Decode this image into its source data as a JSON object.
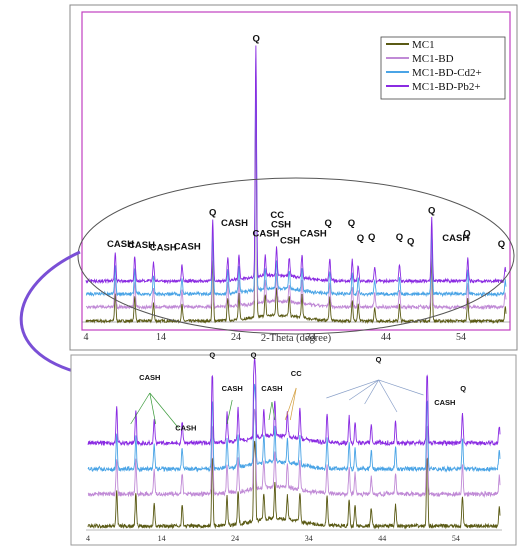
{
  "chart_data": [
    {
      "type": "line",
      "title": "",
      "xlabel": "2-Theta (degree)",
      "ylabel": "",
      "xlim": [
        4,
        60
      ],
      "x_ticks": [
        4,
        14,
        24,
        34,
        44,
        54
      ],
      "legend_position": "top-right",
      "series": [
        {
          "name": "MC1",
          "color": "#5a5a14"
        },
        {
          "name": "MC1-BD",
          "color": "#c08ad6"
        },
        {
          "name": "MC1-BD-Cd2+",
          "color": "#4aa4e6"
        },
        {
          "name": "MC1-BD-Pb2+",
          "color": "#8a2be2"
        }
      ],
      "peaks": [
        {
          "x": 7.9,
          "h": 0.12
        },
        {
          "x": 10.5,
          "h": 0.11
        },
        {
          "x": 13.0,
          "h": 0.08
        },
        {
          "x": 16.8,
          "h": 0.07
        },
        {
          "x": 20.9,
          "h": 0.26
        },
        {
          "x": 22.9,
          "h": 0.1
        },
        {
          "x": 24.4,
          "h": 0.11
        },
        {
          "x": 26.65,
          "h": 1.0
        },
        {
          "x": 27.9,
          "h": 0.09
        },
        {
          "x": 29.4,
          "h": 0.12
        },
        {
          "x": 31.1,
          "h": 0.08
        },
        {
          "x": 32.8,
          "h": 0.1
        },
        {
          "x": 36.5,
          "h": 0.1
        },
        {
          "x": 39.5,
          "h": 0.09
        },
        {
          "x": 40.3,
          "h": 0.07
        },
        {
          "x": 42.5,
          "h": 0.06
        },
        {
          "x": 45.8,
          "h": 0.07
        },
        {
          "x": 50.1,
          "h": 0.27
        },
        {
          "x": 54.9,
          "h": 0.1
        },
        {
          "x": 59.9,
          "h": 0.06
        }
      ],
      "annotations": [
        {
          "text": "Q",
          "x": 26.7,
          "y": 1.04
        },
        {
          "text": "CASH",
          "x": 8.6,
          "y": 0.155
        },
        {
          "text": "CASH",
          "x": 11.4,
          "y": 0.15
        },
        {
          "text": "CASH",
          "x": 14.3,
          "y": 0.14
        },
        {
          "text": "CASH",
          "x": 17.5,
          "y": 0.145
        },
        {
          "text": "Q",
          "x": 20.9,
          "y": 0.29
        },
        {
          "text": "CASH",
          "x": 23.8,
          "y": 0.245
        },
        {
          "text": "CASH",
          "x": 28.0,
          "y": 0.2
        },
        {
          "text": "CC",
          "x": 29.5,
          "y": 0.28
        },
        {
          "text": "CSH",
          "x": 30.0,
          "y": 0.24
        },
        {
          "text": "CSH",
          "x": 31.2,
          "y": 0.17
        },
        {
          "text": "CASH",
          "x": 34.3,
          "y": 0.2
        },
        {
          "text": "Q",
          "x": 36.3,
          "y": 0.245
        },
        {
          "text": "Q",
          "x": 39.4,
          "y": 0.245
        },
        {
          "text": "Q",
          "x": 40.6,
          "y": 0.18
        },
        {
          "text": "Q",
          "x": 42.1,
          "y": 0.185
        },
        {
          "text": "Q",
          "x": 45.8,
          "y": 0.185
        },
        {
          "text": "Q",
          "x": 47.3,
          "y": 0.165
        },
        {
          "text": "Q",
          "x": 50.1,
          "y": 0.3
        },
        {
          "text": "CASH",
          "x": 53.3,
          "y": 0.18
        },
        {
          "text": "Q",
          "x": 54.8,
          "y": 0.2
        },
        {
          "text": "Q",
          "x": 59.4,
          "y": 0.155
        }
      ]
    },
    {
      "type": "line",
      "title": "",
      "xlabel": "",
      "ylabel": "",
      "xlim": [
        4,
        60
      ],
      "x_ticks": [
        4,
        14,
        24,
        34,
        44,
        54
      ],
      "series": [
        {
          "name": "MC1",
          "color": "#5a5a14"
        },
        {
          "name": "MC1-BD",
          "color": "#c08ad6"
        },
        {
          "name": "MC1-BD-Cd2+",
          "color": "#4aa4e6"
        },
        {
          "name": "MC1-BD-Pb2+",
          "color": "#8a2be2"
        }
      ],
      "annotations": [
        {
          "text": "CASH",
          "x": 12.4,
          "y": 1.0
        },
        {
          "text": "CASH",
          "x": 17.3,
          "y": 0.64
        },
        {
          "text": "Q",
          "x": 20.9,
          "y": 1.16
        },
        {
          "text": "CASH",
          "x": 23.6,
          "y": 0.92
        },
        {
          "text": "Q",
          "x": 26.5,
          "y": 1.16
        },
        {
          "text": "CASH",
          "x": 29.0,
          "y": 0.92
        },
        {
          "text": "CC",
          "x": 32.3,
          "y": 1.03
        },
        {
          "text": "Q",
          "x": 43.5,
          "y": 1.13
        },
        {
          "text": "CASH",
          "x": 52.5,
          "y": 0.82
        },
        {
          "text": "Q",
          "x": 55.0,
          "y": 0.92
        }
      ]
    }
  ]
}
